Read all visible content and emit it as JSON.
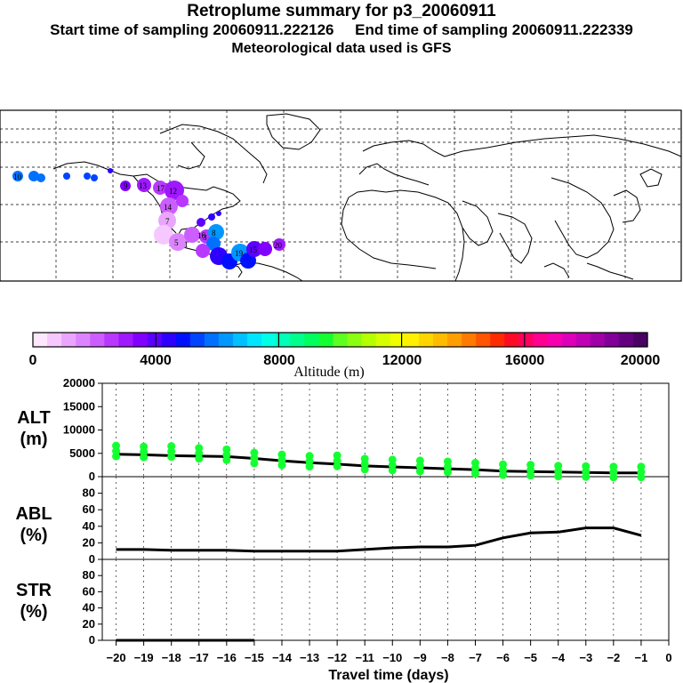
{
  "header": {
    "title": "Retroplume summary for p3_20060911",
    "subtitle": "Start time of sampling 20060911.222126     End time of sampling 20060911.222339",
    "met": "Meteorological data used is GFS"
  },
  "colorbar": {
    "title": "Altitude (m)",
    "ticks": [
      "0",
      "4000",
      "8000",
      "12000",
      "16000",
      "20000"
    ],
    "colors": [
      "#ffe6ff",
      "#f6c8ff",
      "#eaa6ff",
      "#dc84ff",
      "#cc5eff",
      "#b838ff",
      "#9f18ff",
      "#8200ff",
      "#5c00ff",
      "#2e00ff",
      "#0010ff",
      "#0044ff",
      "#0070ff",
      "#0098ff",
      "#00c0ff",
      "#00e6ff",
      "#00ffe4",
      "#00ffb8",
      "#00ff8c",
      "#00ff5e",
      "#14ff30",
      "#5cff20",
      "#8cff10",
      "#b4ff00",
      "#d6ff00",
      "#f2ff00",
      "#ffef00",
      "#ffd500",
      "#ffbb00",
      "#ff9e00",
      "#ff7a00",
      "#ff5400",
      "#ff2a00",
      "#ff0a24",
      "#ff0060",
      "#ff0090",
      "#f600b0",
      "#dc00b8",
      "#c000b4",
      "#a000a8",
      "#800098",
      "#620080",
      "#4a0064"
    ]
  },
  "map": {
    "plume_labels": [
      "10",
      "13",
      "9",
      "17",
      "12",
      "14",
      "16",
      "5",
      "7",
      "1",
      "3",
      "8",
      "19",
      "15",
      "20"
    ]
  },
  "chart_data": [
    {
      "type": "line",
      "panel": "ALT",
      "ylabel": "ALT\n(m)",
      "ylabel_lines": [
        "ALT",
        "(m)"
      ],
      "ylim": [
        0,
        20000
      ],
      "yticks": [
        "0",
        "5000",
        "10000",
        "15000",
        "20000"
      ],
      "x": [
        -20,
        -19,
        -18,
        -17,
        -16,
        -15,
        -14,
        -13,
        -12,
        -11,
        -10,
        -9,
        -8,
        -7,
        -6,
        -5,
        -4,
        -3,
        -2,
        -1
      ],
      "series": [
        {
          "name": "median altitude",
          "values": [
            4800,
            4700,
            4500,
            4400,
            4300,
            3900,
            3400,
            3000,
            2700,
            2300,
            2100,
            1900,
            1700,
            1500,
            1200,
            1100,
            1000,
            900,
            800,
            800
          ]
        },
        {
          "name": "particle altitude (scatter)",
          "values": [
            5500,
            5300,
            5400,
            5000,
            4700,
            4000,
            3600,
            3300,
            3400,
            2700,
            2500,
            2300,
            2100,
            1800,
            1500,
            1400,
            1200,
            1100,
            1000,
            1000
          ]
        }
      ]
    },
    {
      "type": "line",
      "panel": "ABL",
      "ylabel_lines": [
        "ABL",
        "(%)"
      ],
      "ylim": [
        0,
        100
      ],
      "yticks": [
        "0",
        "20",
        "40",
        "60",
        "80"
      ],
      "x": [
        -20,
        -19,
        -18,
        -17,
        -16,
        -15,
        -14,
        -13,
        -12,
        -11,
        -10,
        -9,
        -8,
        -7,
        -6,
        -5,
        -4,
        -3,
        -2,
        -1
      ],
      "series": [
        {
          "name": "ABL fraction",
          "values": [
            12,
            12,
            11,
            11,
            11,
            10,
            10,
            10,
            10,
            12,
            14,
            15,
            15,
            17,
            26,
            32,
            33,
            38,
            38,
            29
          ]
        }
      ]
    },
    {
      "type": "line",
      "panel": "STR",
      "ylabel_lines": [
        "STR",
        "(%)"
      ],
      "ylim": [
        0,
        100
      ],
      "yticks": [
        "0",
        "20",
        "40",
        "60",
        "80"
      ],
      "xlabel": "Travel time (days)",
      "xticks": [
        "-20",
        "-19",
        "-18",
        "-17",
        "-16",
        "-15",
        "-14",
        "-13",
        "-12",
        "-11",
        "-10",
        "-9",
        "-8",
        "-7",
        "-6",
        "-5",
        "-4",
        "-3",
        "-2",
        "-1",
        "0"
      ],
      "x": [
        -20,
        -19,
        -18,
        -17,
        -16,
        -15
      ],
      "series": [
        {
          "name": "STR fraction",
          "values": [
            0,
            0,
            0,
            0,
            0,
            0
          ]
        }
      ]
    }
  ]
}
